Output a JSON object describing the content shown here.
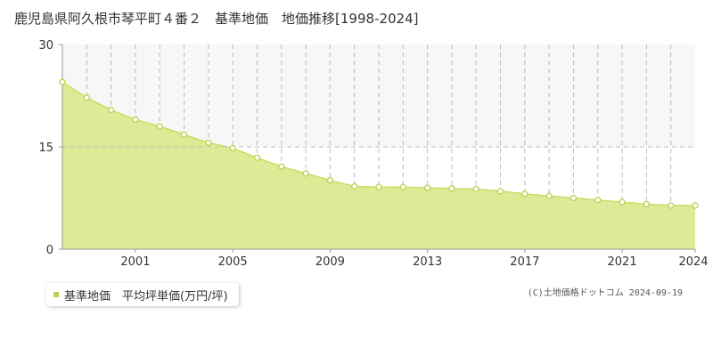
{
  "title": "鹿児島県阿久根市琴平町４番２　基準地価　地価推移[1998-2024]",
  "legend": {
    "label": "基準地価　平均坪単価(万円/坪)"
  },
  "copyright": "(C)土地価格ドットコム 2024-09-19",
  "colors": {
    "fill": "#dcec96",
    "line": "#c6df62",
    "marker_stroke": "#b6d24e",
    "marker_fill": "#ffffff",
    "grid": "#bbbbbb",
    "axis": "#999999",
    "band": "#f7f7f7",
    "legend_swatch": "#b6d24e"
  },
  "chart_data": {
    "type": "area",
    "title": "鹿児島県阿久根市琴平町４番２　基準地価　地価推移[1998-2024]",
    "xlabel": "",
    "ylabel": "",
    "xlim": [
      1998,
      2024
    ],
    "ylim": [
      0,
      30
    ],
    "y_ticks": [
      "0",
      "15",
      "30"
    ],
    "x_ticks": [
      "2001",
      "2005",
      "2009",
      "2013",
      "2017",
      "2021",
      "2024"
    ],
    "grid": true,
    "legend_position": "bottom-left",
    "series": [
      {
        "name": "基準地価　平均坪単価(万円/坪)",
        "x": [
          1998,
          1999,
          2000,
          2001,
          2002,
          2003,
          2004,
          2005,
          2006,
          2007,
          2008,
          2009,
          2010,
          2011,
          2012,
          2013,
          2014,
          2015,
          2016,
          2017,
          2018,
          2019,
          2020,
          2021,
          2022,
          2023,
          2024
        ],
        "values": [
          24.5,
          22.2,
          20.4,
          19.0,
          18.0,
          16.8,
          15.6,
          14.8,
          13.4,
          12.1,
          11.1,
          10.1,
          9.2,
          9.1,
          9.1,
          9.0,
          8.9,
          8.8,
          8.5,
          8.1,
          7.8,
          7.5,
          7.2,
          6.9,
          6.6,
          6.4,
          6.4
        ]
      }
    ]
  }
}
